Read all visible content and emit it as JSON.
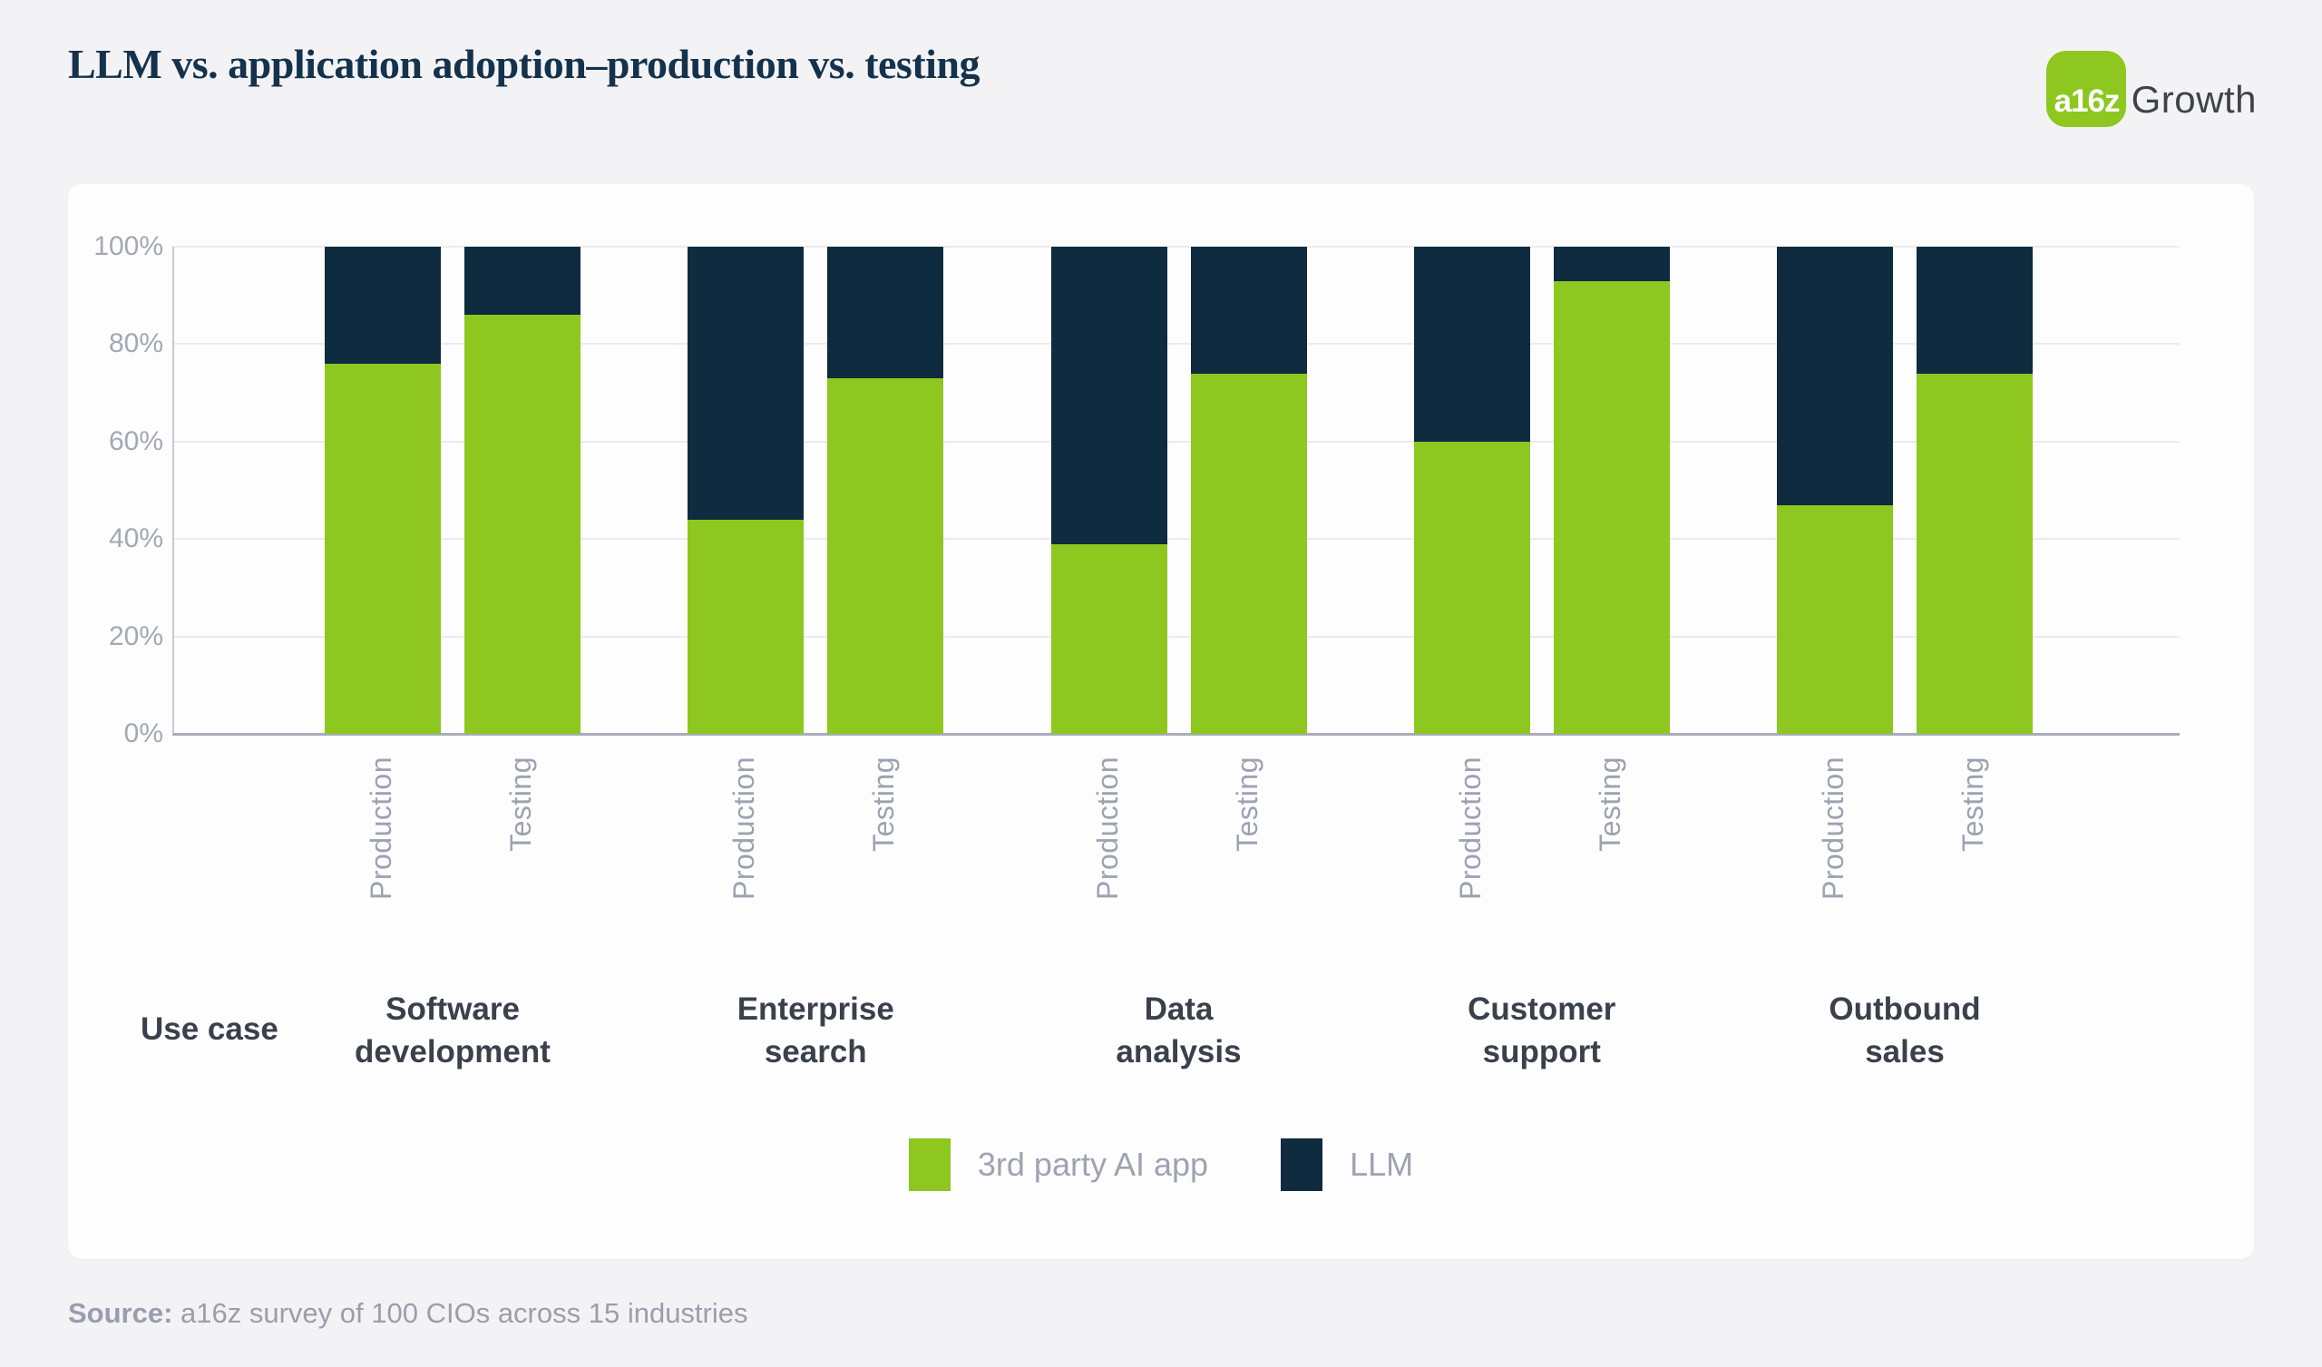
{
  "page": {
    "title": "LLM vs. application adoption–production vs. testing"
  },
  "logo": {
    "badge": "a16z",
    "wordmark": "Growth"
  },
  "axis": {
    "use_case_label": "Use case"
  },
  "source": {
    "label": "Source:",
    "text": " a16z survey of 100 CIOs across 15 industries"
  },
  "chart_data": {
    "type": "bar",
    "stacked": true,
    "title": "LLM vs. application adoption–production vs. testing",
    "xlabel": "Use case",
    "ylabel": "",
    "ylim": [
      0,
      100
    ],
    "yticks": [
      0,
      20,
      40,
      60,
      80,
      100
    ],
    "ytick_labels": [
      "0%",
      "20%",
      "40%",
      "60%",
      "80%",
      "100%"
    ],
    "grid": true,
    "legend_position": "bottom-center",
    "colors": {
      "app": "#8DC71F",
      "llm": "#0E2B3F"
    },
    "legend": [
      {
        "name": "3rd party AI app",
        "key": "app",
        "color": "#8DC71F"
      },
      {
        "name": "LLM",
        "key": "llm",
        "color": "#0E2B3F"
      }
    ],
    "categories": [
      "Software development",
      "Enterprise search",
      "Data analysis",
      "Customer support",
      "Outbound sales"
    ],
    "sub_categories": [
      "Production",
      "Testing"
    ],
    "series": [
      {
        "name": "3rd party AI app",
        "values": {
          "Production": [
            76,
            44,
            39,
            60,
            47
          ],
          "Testing": [
            86,
            73,
            74,
            93,
            74
          ]
        }
      },
      {
        "name": "LLM",
        "values": {
          "Production": [
            24,
            56,
            61,
            40,
            53
          ],
          "Testing": [
            14,
            27,
            26,
            7,
            26
          ]
        }
      }
    ]
  }
}
